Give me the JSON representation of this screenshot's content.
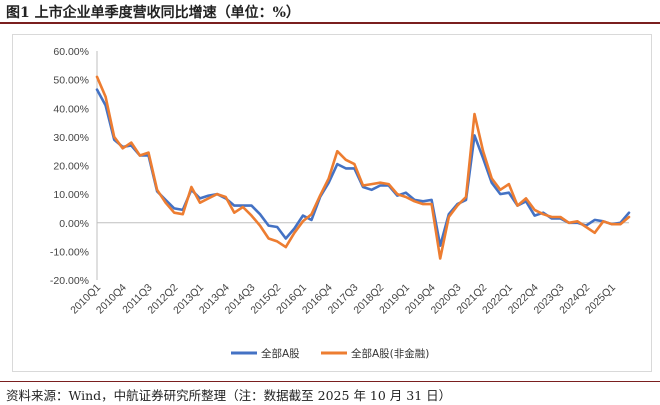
{
  "title": "图1  上市企业单季度营收同比增速（单位：%）",
  "source": "资料来源：Wind，中航证券研究所整理（注：数据截至 2025 年 10 月 31 日）",
  "chart_data": {
    "type": "line",
    "title": "",
    "xlabel": "",
    "ylabel": "",
    "ylim": [
      -20,
      60
    ],
    "y_ticks": [
      "60.00%",
      "50.00%",
      "40.00%",
      "30.00%",
      "20.00%",
      "10.00%",
      "0.00%",
      "-10.00%",
      "-20.00%"
    ],
    "y_tick_values": [
      60,
      50,
      40,
      30,
      20,
      10,
      0,
      -10,
      -20
    ],
    "grid": false,
    "legend_position": "bottom",
    "x": [
      "2010Q1",
      "2010Q2",
      "2010Q3",
      "2010Q4",
      "2011Q1",
      "2011Q2",
      "2011Q3",
      "2011Q4",
      "2012Q1",
      "2012Q2",
      "2012Q3",
      "2012Q4",
      "2013Q1",
      "2013Q2",
      "2013Q3",
      "2013Q4",
      "2014Q1",
      "2014Q2",
      "2014Q3",
      "2014Q4",
      "2015Q1",
      "2015Q2",
      "2015Q3",
      "2015Q4",
      "2016Q1",
      "2016Q2",
      "2016Q3",
      "2016Q4",
      "2017Q1",
      "2017Q2",
      "2017Q3",
      "2017Q4",
      "2018Q1",
      "2018Q2",
      "2018Q3",
      "2018Q4",
      "2019Q1",
      "2019Q2",
      "2019Q3",
      "2019Q4",
      "2020Q1",
      "2020Q2",
      "2020Q3",
      "2020Q4",
      "2021Q1",
      "2021Q2",
      "2021Q3",
      "2021Q4",
      "2022Q1",
      "2022Q2",
      "2022Q3",
      "2022Q4",
      "2023Q1",
      "2023Q2",
      "2023Q3",
      "2023Q4",
      "2024Q1",
      "2024Q2",
      "2024Q3",
      "2024Q4",
      "2025Q1",
      "2025Q2",
      "2025Q3"
    ],
    "x_tick_labels": [
      "2010Q1",
      "2010Q4",
      "2011Q3",
      "2012Q2",
      "2013Q1",
      "2013Q4",
      "2014Q3",
      "2015Q2",
      "2016Q1",
      "2016Q4",
      "2017Q3",
      "2018Q2",
      "2019Q1",
      "2019Q4",
      "2020Q3",
      "2021Q2",
      "2022Q1",
      "2022Q4",
      "2023Q3",
      "2024Q2",
      "2025Q1"
    ],
    "series": [
      {
        "name": "全部A股",
        "color": "#4472c4",
        "values": [
          46.5,
          41,
          29,
          26.5,
          27,
          23.5,
          23.5,
          11,
          8,
          5,
          4.5,
          11.5,
          8.5,
          9.5,
          10,
          8.5,
          6,
          6,
          6,
          3,
          -1,
          -1.5,
          -5.5,
          -2,
          2.5,
          1,
          9,
          14,
          20.5,
          19,
          19,
          12.5,
          11.5,
          13,
          13,
          9.5,
          10.5,
          8,
          7.5,
          8,
          -8,
          3,
          6.5,
          8,
          30.5,
          22.5,
          14,
          10,
          10.5,
          6,
          7.5,
          2.5,
          3.5,
          1.5,
          1.5,
          0,
          0,
          -1,
          1,
          0.5,
          -0.5,
          0,
          3.5
        ]
      },
      {
        "name": "全部A股(非金融)",
        "color": "#ed7d31",
        "values": [
          51,
          44,
          30,
          26,
          28,
          23.5,
          24.5,
          11.5,
          7,
          3.5,
          3,
          12.5,
          7,
          8.5,
          10,
          9,
          3.5,
          5.5,
          2.5,
          -1,
          -5.5,
          -6.5,
          -8.5,
          -3.5,
          0.5,
          3,
          9.5,
          15.5,
          25,
          22,
          20.5,
          13,
          13.5,
          14,
          13.5,
          10,
          9,
          7.5,
          6.5,
          6.5,
          -12.5,
          2,
          6,
          9,
          38,
          25,
          15.5,
          11.5,
          13.5,
          6,
          8.5,
          4.5,
          3,
          2,
          2,
          0,
          0.5,
          -1.5,
          -3.5,
          0.5,
          -0.5,
          -0.5,
          2
        ]
      }
    ]
  }
}
